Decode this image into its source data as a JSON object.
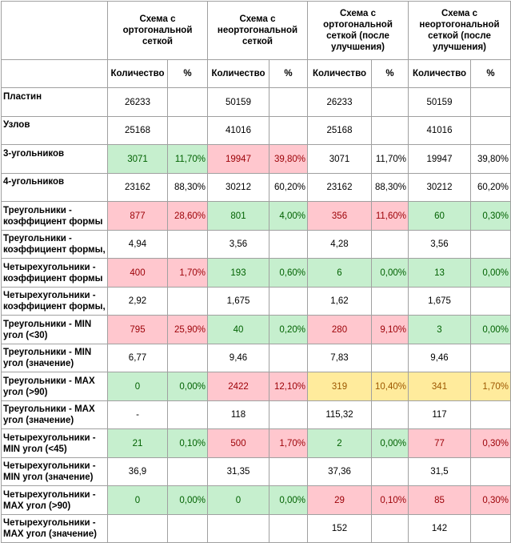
{
  "headers": {
    "col_groups": [
      "Схема с ортогональной сеткой",
      "Схема с неортогональной сеткой",
      "Схема с ортогональной сеткой (после улучшения)",
      "Схема с неортогональной сеткой (после улучшения)"
    ],
    "qty": "Количество",
    "pct": "%"
  },
  "rows": [
    {
      "label": "Пластин",
      "cells": [
        {
          "v": "26233"
        },
        {
          "v": ""
        },
        {
          "v": "50159"
        },
        {
          "v": ""
        },
        {
          "v": "26233"
        },
        {
          "v": ""
        },
        {
          "v": "50159"
        },
        {
          "v": ""
        }
      ]
    },
    {
      "label": "Узлов",
      "cells": [
        {
          "v": "25168"
        },
        {
          "v": ""
        },
        {
          "v": "41016"
        },
        {
          "v": ""
        },
        {
          "v": "25168"
        },
        {
          "v": ""
        },
        {
          "v": "41016"
        },
        {
          "v": ""
        }
      ]
    },
    {
      "label": "3-угольников",
      "cells": [
        {
          "v": "3071",
          "c": "g"
        },
        {
          "v": "11,70%",
          "c": "g"
        },
        {
          "v": "19947",
          "c": "r"
        },
        {
          "v": "39,80%",
          "c": "r"
        },
        {
          "v": "3071"
        },
        {
          "v": "11,70%"
        },
        {
          "v": "19947"
        },
        {
          "v": "39,80%"
        }
      ]
    },
    {
      "label": "4-угольников",
      "cells": [
        {
          "v": "23162"
        },
        {
          "v": "88,30%"
        },
        {
          "v": "30212"
        },
        {
          "v": "60,20%"
        },
        {
          "v": "23162"
        },
        {
          "v": "88,30%"
        },
        {
          "v": "30212"
        },
        {
          "v": "60,20%"
        }
      ]
    },
    {
      "label": "Треугольники - коэффициент формы",
      "cells": [
        {
          "v": "877",
          "c": "r"
        },
        {
          "v": "28,60%",
          "c": "r"
        },
        {
          "v": "801",
          "c": "g"
        },
        {
          "v": "4,00%",
          "c": "g"
        },
        {
          "v": "356",
          "c": "r"
        },
        {
          "v": "11,60%",
          "c": "r"
        },
        {
          "v": "60",
          "c": "g"
        },
        {
          "v": "0,30%",
          "c": "g"
        }
      ]
    },
    {
      "label": "Треугольники - коэффициент формы,",
      "cells": [
        {
          "v": "4,94"
        },
        {
          "v": ""
        },
        {
          "v": "3,56"
        },
        {
          "v": ""
        },
        {
          "v": "4,28"
        },
        {
          "v": ""
        },
        {
          "v": "3,56"
        },
        {
          "v": ""
        }
      ]
    },
    {
      "label": "Четырехугольники - коэффициент формы",
      "cells": [
        {
          "v": "400",
          "c": "r"
        },
        {
          "v": "1,70%",
          "c": "r"
        },
        {
          "v": "193",
          "c": "g"
        },
        {
          "v": "0,60%",
          "c": "g"
        },
        {
          "v": "6",
          "c": "g"
        },
        {
          "v": "0,00%",
          "c": "g"
        },
        {
          "v": "13",
          "c": "g"
        },
        {
          "v": "0,00%",
          "c": "g"
        }
      ]
    },
    {
      "label": "Четырехугольники - коэффициент формы,",
      "cells": [
        {
          "v": "2,92"
        },
        {
          "v": ""
        },
        {
          "v": "1,675"
        },
        {
          "v": ""
        },
        {
          "v": "1,62"
        },
        {
          "v": ""
        },
        {
          "v": "1,675"
        },
        {
          "v": ""
        }
      ]
    },
    {
      "label": "Треугольники - MIN угол (<30)",
      "cells": [
        {
          "v": "795",
          "c": "r"
        },
        {
          "v": "25,90%",
          "c": "r"
        },
        {
          "v": "40",
          "c": "g"
        },
        {
          "v": "0,20%",
          "c": "g"
        },
        {
          "v": "280",
          "c": "r"
        },
        {
          "v": "9,10%",
          "c": "r"
        },
        {
          "v": "3",
          "c": "g"
        },
        {
          "v": "0,00%",
          "c": "g"
        }
      ]
    },
    {
      "label": "Треугольники - MIN угол (значение)",
      "cells": [
        {
          "v": "6,77"
        },
        {
          "v": ""
        },
        {
          "v": "9,46"
        },
        {
          "v": ""
        },
        {
          "v": "7,83"
        },
        {
          "v": ""
        },
        {
          "v": "9,46"
        },
        {
          "v": ""
        }
      ]
    },
    {
      "label": "Треугольники - MAX угол (>90)",
      "cells": [
        {
          "v": "0",
          "c": "g"
        },
        {
          "v": "0,00%",
          "c": "g"
        },
        {
          "v": "2422",
          "c": "r"
        },
        {
          "v": "12,10%",
          "c": "r"
        },
        {
          "v": "319",
          "c": "y"
        },
        {
          "v": "10,40%",
          "c": "y"
        },
        {
          "v": "341",
          "c": "y"
        },
        {
          "v": "1,70%",
          "c": "y"
        }
      ]
    },
    {
      "label": "Треугольники - MAX угол (значение)",
      "cells": [
        {
          "v": "-"
        },
        {
          "v": ""
        },
        {
          "v": "118"
        },
        {
          "v": ""
        },
        {
          "v": "115,32"
        },
        {
          "v": ""
        },
        {
          "v": "117"
        },
        {
          "v": ""
        }
      ]
    },
    {
      "label": "Четырехугольники - MIN угол (<45)",
      "cells": [
        {
          "v": "21",
          "c": "g"
        },
        {
          "v": "0,10%",
          "c": "g"
        },
        {
          "v": "500",
          "c": "r"
        },
        {
          "v": "1,70%",
          "c": "r"
        },
        {
          "v": "2",
          "c": "g"
        },
        {
          "v": "0,00%",
          "c": "g"
        },
        {
          "v": "77",
          "c": "r"
        },
        {
          "v": "0,30%",
          "c": "r"
        }
      ]
    },
    {
      "label": "Четырехугольники - MIN угол (значение)",
      "cells": [
        {
          "v": "36,9"
        },
        {
          "v": ""
        },
        {
          "v": "31,35"
        },
        {
          "v": ""
        },
        {
          "v": "37,36"
        },
        {
          "v": ""
        },
        {
          "v": "31,5"
        },
        {
          "v": ""
        }
      ]
    },
    {
      "label": "Четырехугольники - MAX угол (>90)",
      "cells": [
        {
          "v": "0",
          "c": "g"
        },
        {
          "v": "0,00%",
          "c": "g"
        },
        {
          "v": "0",
          "c": "g"
        },
        {
          "v": "0,00%",
          "c": "g"
        },
        {
          "v": "29",
          "c": "r"
        },
        {
          "v": "0,10%",
          "c": "r"
        },
        {
          "v": "85",
          "c": "r"
        },
        {
          "v": "0,30%",
          "c": "r"
        }
      ]
    },
    {
      "label": "Четырехугольники - MAX угол (значение)",
      "cells": [
        {
          "v": ""
        },
        {
          "v": ""
        },
        {
          "v": ""
        },
        {
          "v": ""
        },
        {
          "v": "152"
        },
        {
          "v": ""
        },
        {
          "v": "142"
        },
        {
          "v": ""
        }
      ]
    }
  ],
  "colors": {
    "green_fill": "#c6efce",
    "green_text": "#006100",
    "red_fill": "#ffc7ce",
    "red_text": "#9c0006",
    "yellow_fill": "#ffeb9c",
    "yellow_text": "#9c5700",
    "grid": "#a0a0a0"
  }
}
